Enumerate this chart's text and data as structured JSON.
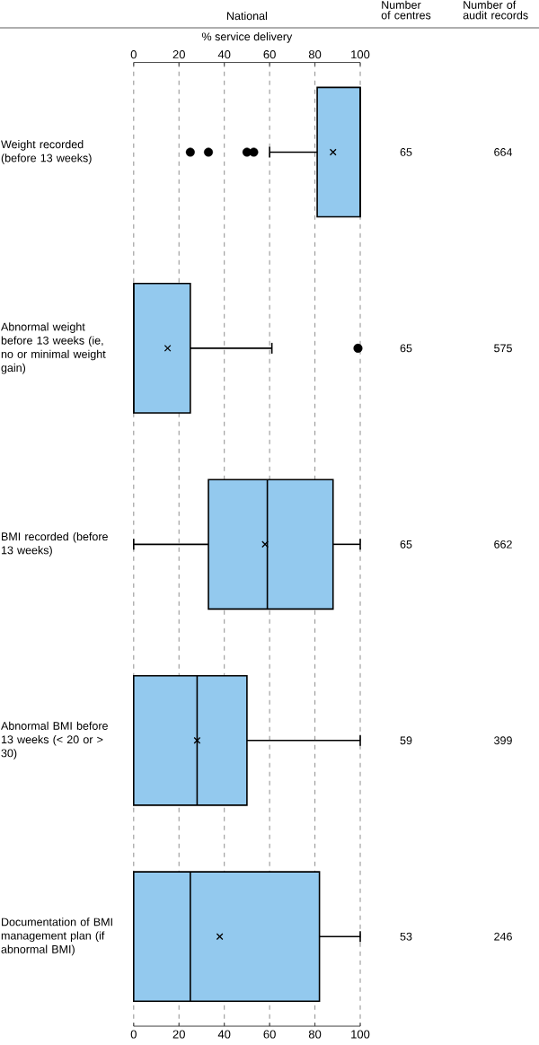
{
  "chart_data": {
    "type": "box",
    "orientation": "horizontal",
    "title": "National",
    "x2label": "% service delivery",
    "categories": [
      "Weight recorded (before 13 weeks)",
      "Abnormal weight before 13 weeks (ie, no or minimal weight gain)",
      "BMI recorded (before 13 weeks)",
      "Abnormal BMI before 13 weeks (< 20 or > 30)",
      "Documentation of BMI management plan (if abnormal BMI)"
    ],
    "boxes": [
      {
        "low": 60,
        "q1": 81,
        "median": 100,
        "q3": 100,
        "high": 100,
        "mean": 88,
        "outliers": [
          25,
          33,
          50,
          53
        ]
      },
      {
        "low": 0,
        "q1": 0,
        "median": 0,
        "q3": 25,
        "high": 61,
        "mean": 15,
        "outliers": [
          99
        ]
      },
      {
        "low": 0,
        "q1": 33,
        "median": 59,
        "q3": 88,
        "high": 100,
        "mean": 58
      },
      {
        "low": 0,
        "q1": 0,
        "median": 28,
        "q3": 50,
        "high": 100,
        "mean": 28
      },
      {
        "low": 0,
        "q1": 0,
        "median": 25,
        "q3": 82,
        "high": 100,
        "mean": 38
      }
    ],
    "color": "#93c9ee",
    "xlim": [
      0,
      100
    ],
    "xticks": [
      0,
      20,
      40,
      60,
      80,
      100
    ],
    "x2lim": [
      0,
      100
    ],
    "x2ticks": [
      0,
      20,
      40,
      60,
      80,
      100
    ],
    "grid": "x",
    "annotations": [
      "Number of centres",
      "Number of audit records",
      "65",
      "664",
      "65",
      "575",
      "65",
      "662",
      "59",
      "399",
      "53",
      "246"
    ]
  }
}
